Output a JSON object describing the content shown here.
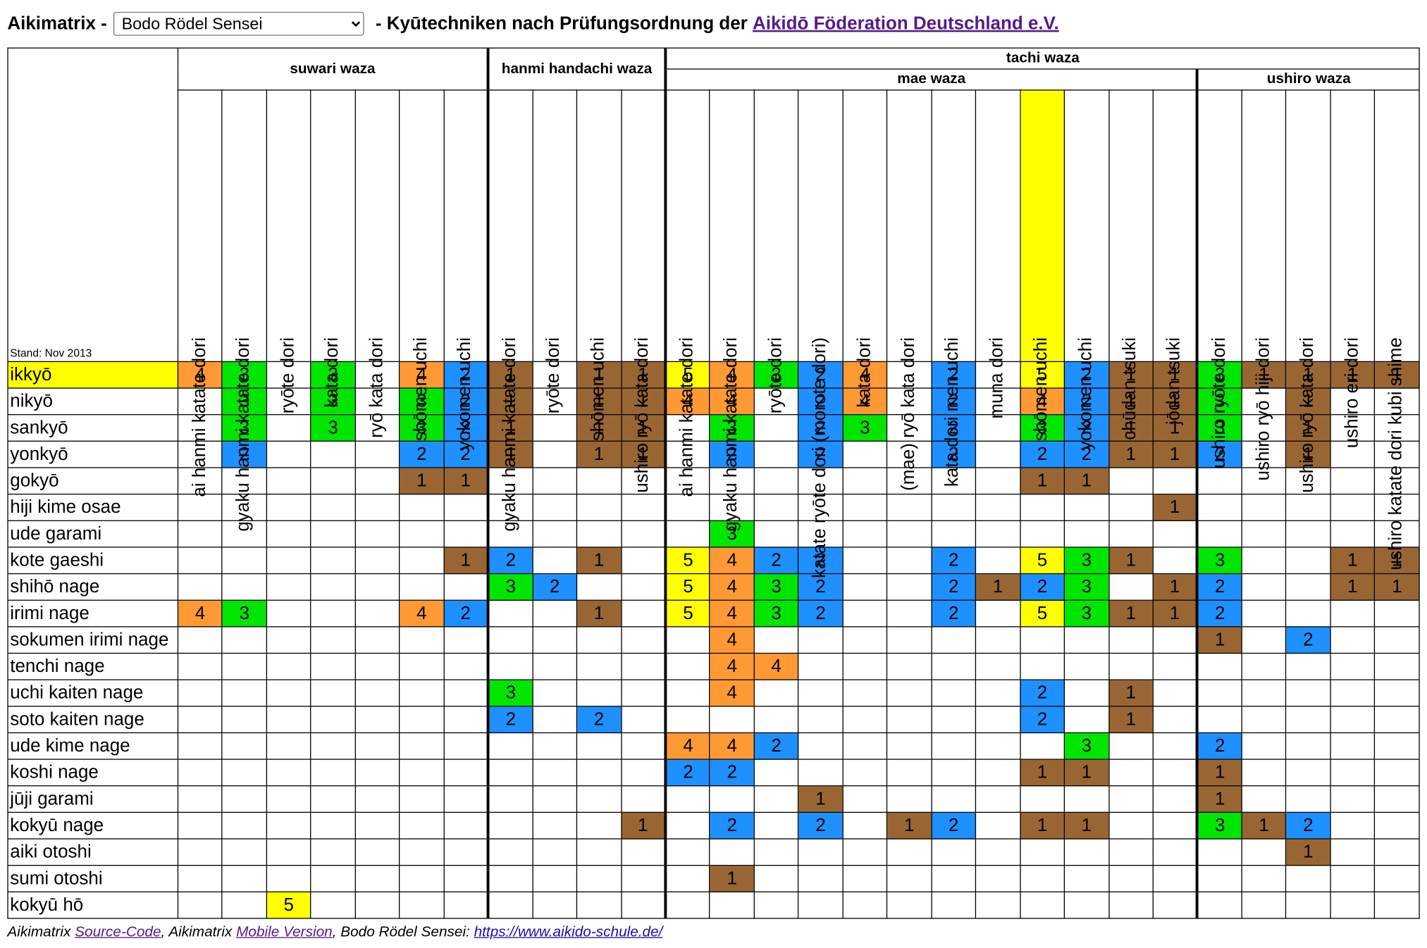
{
  "header": {
    "title_prefix": "Aikimatrix -",
    "select_value": "Bodo Rödel Sensei",
    "title_middle": " - Kyūtechniken nach Prüfungsordnung der ",
    "link_text": "Aikidō Föderation Deutschland e.V."
  },
  "stand": "Stand: Nov 2013",
  "groups": {
    "suwari": "suwari waza",
    "hanmi": "hanmi handachi waza",
    "tachi": "tachi waza",
    "mae": "mae waza",
    "ushiro": "ushiro waza"
  },
  "columns": [
    "ai hanmi katate dori",
    "gyaku hanmi katate dori",
    "ryōte dori",
    "kata dori",
    "ryō kata dori",
    "shōmen uchi",
    "yokomen uchi",
    "gyaku hanmi katate dori",
    "ryōte dori",
    "shōmen uchi",
    "ushiro ryō kata dori",
    "ai hanmi katate dori",
    "gyaku hanmi katate dori",
    "ryōte dori",
    "katate ryōte dori (morote dori)",
    "kata dori",
    "(mae) ryō kata dori",
    "kata dori men uchi",
    "muna dori",
    "shōmen uchi",
    "yokomen uchi",
    "chūdan tsuki",
    "jōdan tsuki",
    "ushiro ryōte dori",
    "ushiro ryō hiji dori",
    "ushiro ryō kata dori",
    "ushiro eri dori",
    "ushiro katate dori kubi shime"
  ],
  "rows": [
    {
      "name": "ikkyō",
      "cells": [
        4,
        3,
        0,
        3,
        0,
        4,
        2,
        1,
        0,
        1,
        1,
        5,
        4,
        3,
        2,
        4,
        0,
        2,
        0,
        5,
        2,
        1,
        1,
        3,
        1,
        1,
        1,
        1
      ]
    },
    {
      "name": "nikyō",
      "cells": [
        0,
        3,
        0,
        3,
        0,
        3,
        2,
        1,
        0,
        1,
        1,
        4,
        4,
        0,
        2,
        4,
        0,
        2,
        0,
        4,
        2,
        1,
        1,
        3,
        0,
        1,
        0,
        0
      ]
    },
    {
      "name": "sankyō",
      "cells": [
        0,
        3,
        0,
        3,
        0,
        3,
        2,
        1,
        0,
        1,
        1,
        0,
        3,
        0,
        2,
        3,
        0,
        2,
        0,
        3,
        2,
        1,
        1,
        3,
        0,
        1,
        0,
        0
      ]
    },
    {
      "name": "yonkyō",
      "cells": [
        0,
        2,
        0,
        0,
        0,
        2,
        2,
        1,
        0,
        1,
        1,
        0,
        2,
        0,
        2,
        0,
        0,
        2,
        0,
        2,
        2,
        1,
        1,
        2,
        0,
        1,
        0,
        0
      ]
    },
    {
      "name": "gokyō",
      "cells": [
        0,
        0,
        0,
        0,
        0,
        1,
        1,
        0,
        0,
        0,
        0,
        0,
        0,
        0,
        0,
        0,
        0,
        0,
        0,
        1,
        1,
        0,
        0,
        0,
        0,
        0,
        0,
        0
      ]
    },
    {
      "name": "hiji kime osae",
      "cells": [
        0,
        0,
        0,
        0,
        0,
        0,
        0,
        0,
        0,
        0,
        0,
        0,
        0,
        0,
        0,
        0,
        0,
        0,
        0,
        0,
        0,
        0,
        1,
        0,
        0,
        0,
        0,
        0
      ]
    },
    {
      "name": "ude garami",
      "cells": [
        0,
        0,
        0,
        0,
        0,
        0,
        0,
        0,
        0,
        0,
        0,
        0,
        3,
        0,
        0,
        0,
        0,
        0,
        0,
        0,
        0,
        0,
        0,
        0,
        0,
        0,
        0,
        0
      ]
    },
    {
      "name": "kote gaeshi",
      "cells": [
        0,
        0,
        0,
        0,
        0,
        0,
        1,
        2,
        0,
        1,
        0,
        5,
        4,
        2,
        2,
        0,
        0,
        2,
        0,
        5,
        3,
        1,
        0,
        3,
        0,
        0,
        1,
        1
      ]
    },
    {
      "name": "shihō nage",
      "cells": [
        0,
        0,
        0,
        0,
        0,
        0,
        0,
        3,
        2,
        0,
        0,
        5,
        4,
        3,
        2,
        0,
        0,
        2,
        1,
        2,
        3,
        0,
        1,
        2,
        0,
        0,
        1,
        1
      ]
    },
    {
      "name": "irimi nage",
      "cells": [
        4,
        3,
        0,
        0,
        0,
        4,
        2,
        0,
        0,
        1,
        0,
        5,
        4,
        3,
        2,
        0,
        0,
        2,
        0,
        5,
        3,
        1,
        1,
        2,
        0,
        0,
        0,
        0
      ]
    },
    {
      "name": "sokumen irimi nage",
      "cells": [
        0,
        0,
        0,
        0,
        0,
        0,
        0,
        0,
        0,
        0,
        0,
        0,
        4,
        0,
        0,
        0,
        0,
        0,
        0,
        0,
        0,
        0,
        0,
        1,
        0,
        2,
        0,
        0
      ]
    },
    {
      "name": "tenchi nage",
      "cells": [
        0,
        0,
        0,
        0,
        0,
        0,
        0,
        0,
        0,
        0,
        0,
        0,
        4,
        4,
        0,
        0,
        0,
        0,
        0,
        0,
        0,
        0,
        0,
        0,
        0,
        0,
        0,
        0
      ]
    },
    {
      "name": "uchi kaiten nage",
      "cells": [
        0,
        0,
        0,
        0,
        0,
        0,
        0,
        3,
        0,
        0,
        0,
        0,
        4,
        0,
        0,
        0,
        0,
        0,
        0,
        2,
        0,
        1,
        0,
        0,
        0,
        0,
        0,
        0
      ]
    },
    {
      "name": "soto kaiten nage",
      "cells": [
        0,
        0,
        0,
        0,
        0,
        0,
        0,
        2,
        0,
        2,
        0,
        0,
        0,
        0,
        0,
        0,
        0,
        0,
        0,
        2,
        0,
        1,
        0,
        0,
        0,
        0,
        0,
        0
      ]
    },
    {
      "name": "ude kime nage",
      "cells": [
        0,
        0,
        0,
        0,
        0,
        0,
        0,
        0,
        0,
        0,
        0,
        4,
        4,
        2,
        0,
        0,
        0,
        0,
        0,
        0,
        3,
        0,
        0,
        2,
        0,
        0,
        0,
        0
      ]
    },
    {
      "name": "koshi nage",
      "cells": [
        0,
        0,
        0,
        0,
        0,
        0,
        0,
        0,
        0,
        0,
        0,
        2,
        2,
        0,
        0,
        0,
        0,
        0,
        0,
        1,
        1,
        0,
        0,
        1,
        0,
        0,
        0,
        0
      ]
    },
    {
      "name": "jūji garami",
      "cells": [
        0,
        0,
        0,
        0,
        0,
        0,
        0,
        0,
        0,
        0,
        0,
        0,
        0,
        0,
        1,
        0,
        0,
        0,
        0,
        0,
        0,
        0,
        0,
        1,
        0,
        0,
        0,
        0
      ]
    },
    {
      "name": "kokyū nage",
      "cells": [
        0,
        0,
        0,
        0,
        0,
        0,
        0,
        0,
        0,
        0,
        1,
        0,
        2,
        0,
        2,
        0,
        1,
        2,
        0,
        1,
        1,
        0,
        0,
        3,
        1,
        2,
        0,
        0
      ]
    },
    {
      "name": "aiki otoshi",
      "cells": [
        0,
        0,
        0,
        0,
        0,
        0,
        0,
        0,
        0,
        0,
        0,
        0,
        0,
        0,
        0,
        0,
        0,
        0,
        0,
        0,
        0,
        0,
        0,
        0,
        0,
        1,
        0,
        0
      ]
    },
    {
      "name": "sumi otoshi",
      "cells": [
        0,
        0,
        0,
        0,
        0,
        0,
        0,
        0,
        0,
        0,
        0,
        0,
        1,
        0,
        0,
        0,
        0,
        0,
        0,
        0,
        0,
        0,
        0,
        0,
        0,
        0,
        0,
        0
      ]
    },
    {
      "name": "kokyū hō",
      "cells": [
        0,
        0,
        5,
        0,
        0,
        0,
        0,
        0,
        0,
        0,
        0,
        0,
        0,
        0,
        0,
        0,
        0,
        0,
        0,
        0,
        0,
        0,
        0,
        0,
        0,
        0,
        0,
        0
      ]
    }
  ],
  "highlight": {
    "row": 0,
    "col": 19
  },
  "colors": {
    "1": "#996633",
    "2": "#1E90FF",
    "3": "#00E600",
    "4": "#FF9933",
    "5": "#FFFF00",
    "highlight": "#FFFF00"
  },
  "footer": {
    "t1": "Aikimatrix ",
    "l1": "Source-Code",
    "t2": ", Aikimatrix ",
    "l2": "Mobile Version",
    "t3": ", Bodo Rödel Sensei: ",
    "l3": "https://www.aikido-schule.de/"
  }
}
